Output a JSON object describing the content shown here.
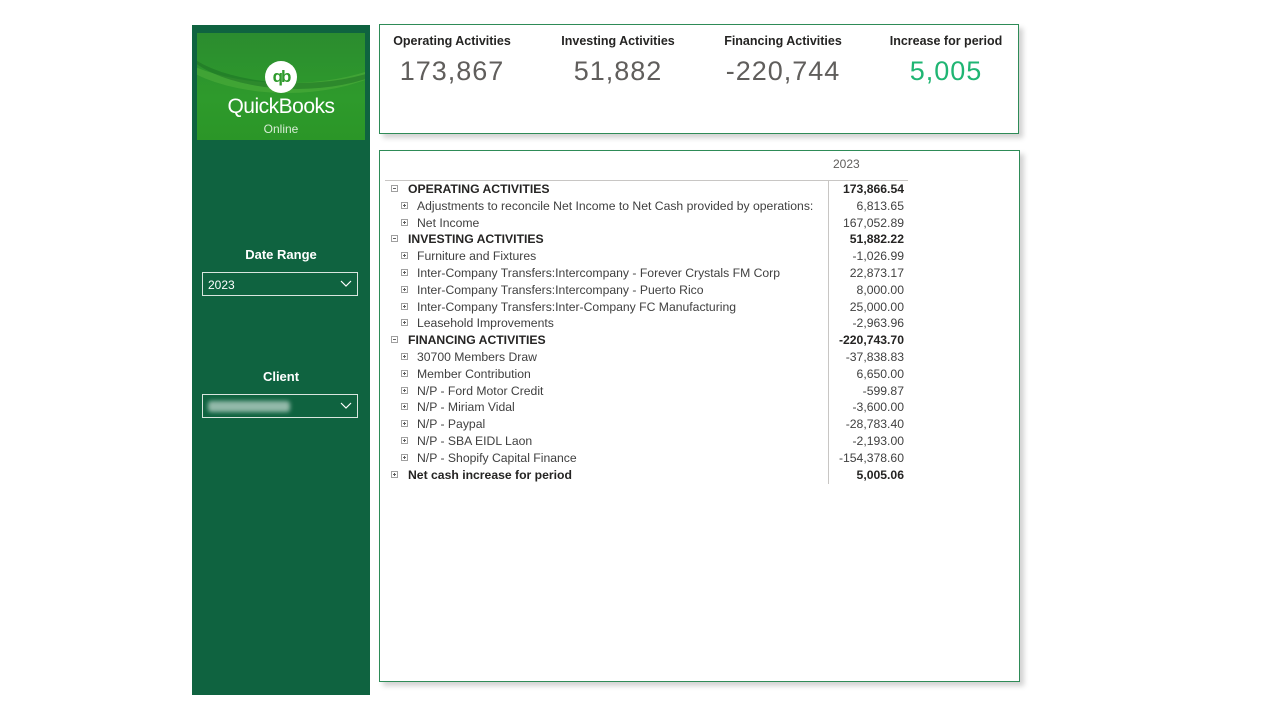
{
  "brand": {
    "name": "QuickBooks",
    "sub": "Online",
    "icon": "qb"
  },
  "filters": {
    "date_range": {
      "label": "Date Range",
      "value": "2023"
    },
    "client": {
      "label": "Client",
      "value": ""
    }
  },
  "kpis": [
    {
      "label": "Operating Activities",
      "value": "173,867"
    },
    {
      "label": "Investing Activities",
      "value": "51,882"
    },
    {
      "label": "Financing Activities",
      "value": "-220,744"
    },
    {
      "label": "Increase for period",
      "value": "5,005"
    }
  ],
  "colors": {
    "sidebar": "#0f6340",
    "accent_positive": "#1fb573",
    "border": "#2e8b57"
  },
  "matrix": {
    "column_header": "2023",
    "rows": [
      {
        "label": "OPERATING ACTIVITIES",
        "value": "173,866.54",
        "level": "top",
        "state": "collapse"
      },
      {
        "label": "Adjustments to reconcile Net Income to Net Cash provided by operations:",
        "value": "6,813.65",
        "level": "sub",
        "state": "expand"
      },
      {
        "label": "Net Income",
        "value": "167,052.89",
        "level": "sub",
        "state": "expand"
      },
      {
        "label": "INVESTING ACTIVITIES",
        "value": "51,882.22",
        "level": "top",
        "state": "collapse"
      },
      {
        "label": "Furniture and Fixtures",
        "value": "-1,026.99",
        "level": "sub",
        "state": "expand"
      },
      {
        "label": "Inter-Company Transfers:Intercompany - Forever Crystals FM Corp",
        "value": "22,873.17",
        "level": "sub",
        "state": "expand"
      },
      {
        "label": "Inter-Company Transfers:Intercompany - Puerto Rico",
        "value": "8,000.00",
        "level": "sub",
        "state": "expand"
      },
      {
        "label": "Inter-Company Transfers:Inter-Company FC Manufacturing",
        "value": "25,000.00",
        "level": "sub",
        "state": "expand"
      },
      {
        "label": "Leasehold Improvements",
        "value": "-2,963.96",
        "level": "sub",
        "state": "expand"
      },
      {
        "label": "FINANCING ACTIVITIES",
        "value": "-220,743.70",
        "level": "top",
        "state": "collapse"
      },
      {
        "label": "30700 Members Draw",
        "value": "-37,838.83",
        "level": "sub",
        "state": "expand"
      },
      {
        "label": "Member Contribution",
        "value": "6,650.00",
        "level": "sub",
        "state": "expand"
      },
      {
        "label": "N/P - Ford Motor Credit",
        "value": "-599.87",
        "level": "sub",
        "state": "expand"
      },
      {
        "label": "N/P - Miriam Vidal",
        "value": "-3,600.00",
        "level": "sub",
        "state": "expand"
      },
      {
        "label": "N/P - Paypal",
        "value": "-28,783.40",
        "level": "sub",
        "state": "expand"
      },
      {
        "label": "N/P - SBA EIDL Laon",
        "value": "-2,193.00",
        "level": "sub",
        "state": "expand"
      },
      {
        "label": "N/P - Shopify Capital Finance",
        "value": "-154,378.60",
        "level": "sub",
        "state": "expand"
      },
      {
        "label": "Net cash increase for period",
        "value": "5,005.06",
        "level": "top",
        "state": "expand"
      }
    ]
  }
}
